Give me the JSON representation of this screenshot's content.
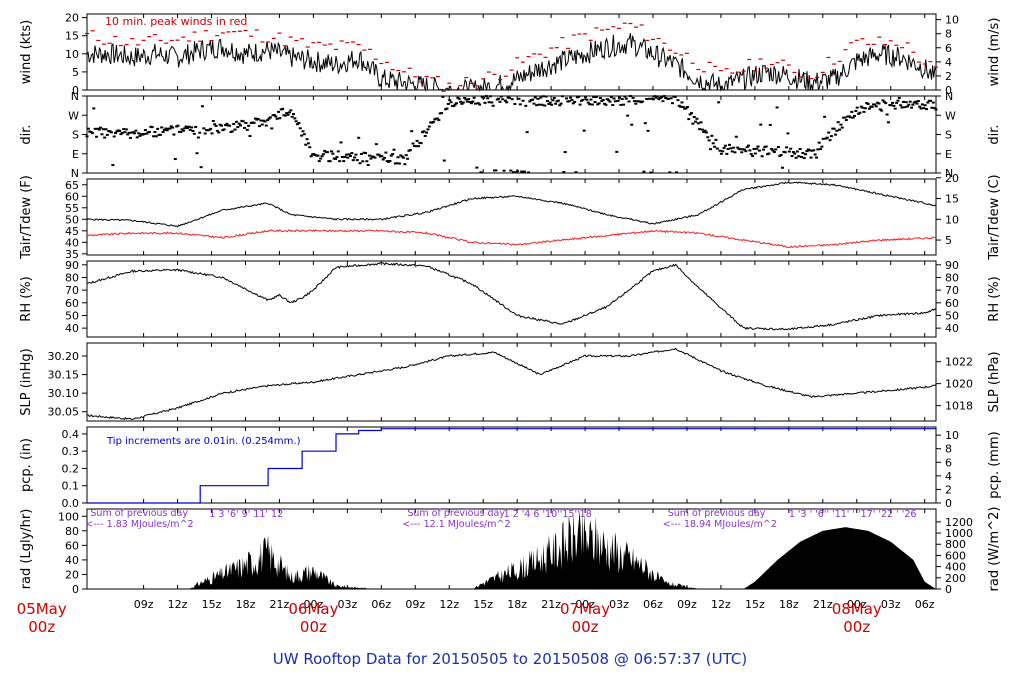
{
  "footer": {
    "title": "UW Rooftop Data for 20150505  to  20150508 @ 06:57:37  (UTC)"
  },
  "colors": {
    "axis": "#000000",
    "peak": "#cc0000",
    "tdew": "#ee2222",
    "pcp": "#0000cc",
    "energy": "#8833cc",
    "day": "#cc0000"
  },
  "time_axis": {
    "ticks": [
      "09z",
      "12z",
      "15z",
      "18z",
      "21z",
      "00z",
      "03z",
      "06z",
      "09z",
      "12z",
      "15z",
      "18z",
      "21z",
      "00z",
      "03z",
      "06z",
      "09z",
      "12z",
      "15z",
      "18z",
      "21z",
      "00z",
      "03z",
      "06z"
    ],
    "days": [
      {
        "line1": "05May",
        "line2": "00z"
      },
      {
        "line1": "06May",
        "line2": "00z"
      },
      {
        "line1": "07May",
        "line2": "00z"
      },
      {
        "line1": "08May",
        "line2": "00z"
      }
    ]
  },
  "panels": {
    "wind": {
      "left_label": "wind (kts)",
      "right_label": "wind (m/s)",
      "note": "10 min. peak winds in red",
      "left_ticks": [
        0,
        5,
        10,
        15,
        20
      ],
      "right_ticks": [
        0,
        2,
        4,
        6,
        8,
        10
      ]
    },
    "dir": {
      "left_label": "dir.",
      "right_label": "dir.",
      "ticks": [
        "N",
        "E",
        "S",
        "W",
        "N"
      ]
    },
    "temp": {
      "left_label": "Tair/Tdew (F)",
      "right_label": "Tair/Tdew (C)",
      "left_ticks": [
        35,
        40,
        45,
        50,
        55,
        60,
        65
      ],
      "right_ticks": [
        5,
        10,
        15,
        20
      ]
    },
    "rh": {
      "left_label": "RH (%)",
      "right_label": "RH (%)",
      "ticks": [
        40,
        50,
        60,
        70,
        80,
        90
      ]
    },
    "slp": {
      "left_label": "SLP (inHg)",
      "right_label": "SLP (hPa)",
      "left_ticks": [
        "30.05",
        "30.10",
        "30.15",
        "30.20"
      ],
      "right_ticks": [
        "1018",
        "1020",
        "1022"
      ]
    },
    "pcp": {
      "left_label": "pcp. (in)",
      "right_label": "pcp. (mm)",
      "note": "Tip increments are 0.01in. (0.254mm.)",
      "left_ticks": [
        "0.0",
        "0.1",
        "0.2",
        "0.3",
        "0.4"
      ],
      "right_ticks": [
        0,
        2,
        4,
        6,
        8,
        10
      ]
    },
    "rad": {
      "left_label": "rad (Lgly/hr)",
      "right_label": "rad (W/m^2)",
      "left_ticks": [
        0,
        20,
        40,
        60,
        80,
        100
      ],
      "right_ticks": [
        0,
        200,
        400,
        600,
        800,
        1000,
        1200
      ],
      "energy": [
        {
          "title": "Sum of previous day",
          "value": "<--- 1.83 MJoules/m^2",
          "hours": "1   3  '6'     9'  11'     12"
        },
        {
          "title": "Sum of previous day",
          "value": "<--- 12.1 MJoules/m^2",
          "hours": "1    2   '4   6  '10''15''18"
        },
        {
          "title": "Sum of previous day",
          "value": "<--- 18.94 MJoules/m^2",
          "hours": "1 '3 ' '6'' '11' ' '17' '22 ' '26"
        }
      ]
    }
  },
  "chart_data": [
    {
      "type": "line",
      "title": "wind (kts)",
      "x_unit": "hours since 00z 05May (UTC)",
      "series": [
        {
          "name": "wind",
          "x": [
            4,
            6,
            8,
            10,
            12,
            14,
            16,
            18,
            20,
            22,
            24,
            26,
            28,
            30,
            32,
            34,
            36,
            38,
            40,
            42,
            44,
            46,
            48,
            50,
            52,
            54,
            56,
            58,
            60,
            62,
            64,
            66,
            68,
            70,
            72,
            74,
            76,
            78,
            79
          ],
          "y": [
            10,
            10,
            9,
            10,
            9,
            11,
            12,
            10,
            11,
            9,
            8,
            7,
            9,
            3,
            2,
            1,
            0,
            0,
            1,
            3,
            6,
            8,
            10,
            12,
            13,
            10,
            7,
            3,
            1,
            3,
            5,
            4,
            2,
            3,
            8,
            10,
            9,
            6,
            3
          ]
        },
        {
          "name": "10 min. peak winds",
          "x": [
            4,
            8,
            12,
            16,
            20,
            24,
            28,
            32,
            36,
            40,
            44,
            48,
            52,
            56,
            60,
            64,
            68,
            72,
            76,
            79
          ],
          "y": [
            15,
            13,
            14,
            16,
            15,
            12,
            12,
            5,
            1,
            4,
            10,
            15,
            18,
            11,
            4,
            8,
            4,
            13,
            13,
            5
          ]
        }
      ]
    },
    {
      "type": "scatter",
      "title": "dir.",
      "categories_y": [
        "N",
        "E",
        "S",
        "W",
        "N"
      ],
      "x": [
        4,
        8,
        12,
        16,
        20,
        22,
        24,
        26,
        28,
        30,
        32,
        36,
        40,
        44,
        48,
        52,
        56,
        60,
        64,
        68,
        72,
        76,
        79
      ],
      "y_deg": [
        190,
        185,
        200,
        210,
        240,
        300,
        80,
        80,
        70,
        75,
        60,
        330,
        350,
        340,
        340,
        340,
        345,
        110,
        100,
        90,
        300,
        330,
        320
      ]
    },
    {
      "type": "line",
      "title": "Tair/Tdew (F)",
      "series": [
        {
          "name": "Tair",
          "x": [
            4,
            8,
            12,
            16,
            20,
            22,
            24,
            26,
            30,
            34,
            38,
            42,
            46,
            50,
            54,
            58,
            62,
            66,
            70,
            74,
            79
          ],
          "y": [
            50,
            49.5,
            47,
            54,
            57,
            52,
            51,
            50,
            50,
            53,
            59,
            60,
            57,
            52,
            48,
            52,
            63,
            66,
            65,
            61,
            56
          ]
        },
        {
          "name": "Tdew",
          "x": [
            4,
            8,
            12,
            16,
            20,
            22,
            24,
            26,
            30,
            34,
            38,
            42,
            46,
            50,
            54,
            58,
            62,
            66,
            70,
            74,
            79
          ],
          "y": [
            43,
            44,
            44,
            42,
            45,
            45,
            45,
            45,
            45,
            44,
            40,
            39,
            41,
            43,
            45,
            44,
            41,
            38,
            39,
            41,
            42
          ]
        }
      ]
    },
    {
      "type": "line",
      "title": "RH (%)",
      "x": [
        4,
        8,
        12,
        16,
        20,
        21,
        22,
        23,
        24,
        26,
        30,
        34,
        38,
        42,
        46,
        50,
        54,
        56,
        58,
        62,
        66,
        70,
        74,
        78,
        79
      ],
      "y": [
        75,
        85,
        86,
        80,
        62,
        66,
        60,
        64,
        70,
        88,
        91,
        89,
        75,
        50,
        43,
        57,
        85,
        90,
        72,
        40,
        39,
        43,
        50,
        52,
        55
      ]
    },
    {
      "type": "line",
      "title": "SLP (inHg)",
      "x": [
        4,
        8,
        12,
        16,
        20,
        24,
        28,
        32,
        36,
        40,
        44,
        48,
        52,
        56,
        60,
        64,
        68,
        72,
        76,
        79
      ],
      "y": [
        30.04,
        30.03,
        30.06,
        30.1,
        30.12,
        30.13,
        30.15,
        30.17,
        30.2,
        30.21,
        30.15,
        30.2,
        30.2,
        30.22,
        30.16,
        30.12,
        30.09,
        30.1,
        30.11,
        30.12
      ]
    },
    {
      "type": "line",
      "title": "pcp. (in)",
      "x": [
        4,
        13,
        14,
        19,
        20,
        22,
        23,
        25,
        26,
        27,
        28,
        29,
        30,
        79
      ],
      "y": [
        0,
        0,
        0.1,
        0.1,
        0.2,
        0.2,
        0.3,
        0.3,
        0.4,
        0.4,
        0.42,
        0.42,
        0.43,
        0.43
      ]
    },
    {
      "type": "area",
      "title": "rad (Lgly/hr)",
      "x": [
        4,
        13,
        14,
        16,
        18,
        20,
        22,
        24,
        26,
        28,
        30,
        38,
        39,
        41,
        43,
        45,
        47,
        49,
        51,
        53,
        55,
        58,
        62,
        63,
        65,
        67,
        69,
        71,
        73,
        75,
        77,
        78,
        79
      ],
      "y": [
        0,
        0,
        10,
        25,
        40,
        60,
        20,
        30,
        5,
        2,
        0,
        0,
        10,
        25,
        40,
        60,
        85,
        80,
        60,
        40,
        10,
        0,
        0,
        10,
        40,
        65,
        80,
        85,
        80,
        65,
        40,
        10,
        0
      ]
    }
  ]
}
